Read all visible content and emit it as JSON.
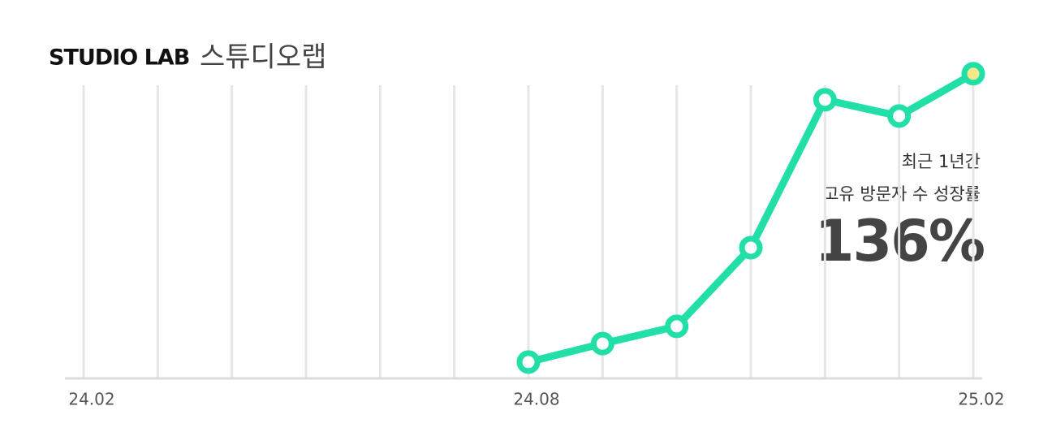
{
  "chart_data": {
    "type": "line",
    "title": "STUDIO LAB",
    "subtitle": "스튜디오랩",
    "categories": [
      "24.02",
      null,
      null,
      null,
      null,
      null,
      "24.08",
      null,
      null,
      null,
      null,
      null,
      "25.02"
    ],
    "series": [
      {
        "color": "#22dfa8",
        "values": [
          null,
          null,
          null,
          null,
          null,
          null,
          5.2,
          11.1,
          16.6,
          41.7,
          88.9,
          83.7,
          97.2
        ]
      }
    ],
    "ylim": [
      0,
      100
    ],
    "grid": true,
    "last_point_color": "#f5e88a",
    "annotations": [
      "최근 1년간",
      "고유 방문자 수 성장률",
      "136%"
    ]
  }
}
